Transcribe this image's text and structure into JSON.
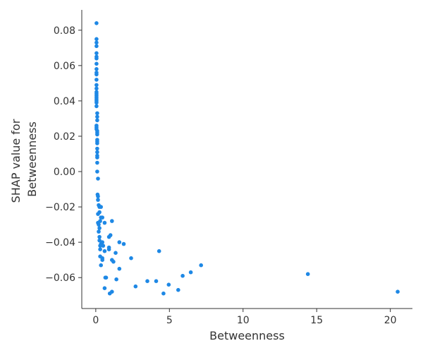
{
  "chart_data": {
    "type": "scatter",
    "xlabel": "Betweenness",
    "ylabel_lines": [
      "SHAP value for",
      "Betweenness"
    ],
    "xlim": [
      -0.95,
      21.5
    ],
    "ylim": [
      -0.0775,
      0.0915
    ],
    "xticks": [
      0,
      5,
      10,
      15,
      20
    ],
    "xtick_labels": [
      "0",
      "5",
      "10",
      "15",
      "20"
    ],
    "yticks": [
      -0.06,
      -0.04,
      -0.02,
      0.0,
      0.02,
      0.04,
      0.06,
      0.08
    ],
    "ytick_labels": [
      "−0.06",
      "−0.04",
      "−0.02",
      "0.00",
      "0.02",
      "0.04",
      "0.06",
      "0.08"
    ],
    "grid": false,
    "point_color": "#1e88e5",
    "points": [
      [
        0.05,
        0.084
      ],
      [
        0.05,
        0.075
      ],
      [
        0.05,
        0.073
      ],
      [
        0.05,
        0.071
      ],
      [
        0.05,
        0.067
      ],
      [
        0.05,
        0.065
      ],
      [
        0.05,
        0.064
      ],
      [
        0.05,
        0.061
      ],
      [
        0.05,
        0.058
      ],
      [
        0.05,
        0.056
      ],
      [
        0.05,
        0.055
      ],
      [
        0.05,
        0.052
      ],
      [
        0.05,
        0.049
      ],
      [
        0.05,
        0.047
      ],
      [
        0.05,
        0.045
      ],
      [
        0.05,
        0.044
      ],
      [
        0.05,
        0.043
      ],
      [
        0.05,
        0.042
      ],
      [
        0.05,
        0.041
      ],
      [
        0.05,
        0.04
      ],
      [
        0.05,
        0.039
      ],
      [
        0.05,
        0.037
      ],
      [
        0.1,
        0.033
      ],
      [
        0.1,
        0.031
      ],
      [
        0.1,
        0.029
      ],
      [
        0.05,
        0.026
      ],
      [
        0.05,
        0.025
      ],
      [
        0.05,
        0.024
      ],
      [
        0.1,
        0.023
      ],
      [
        0.1,
        0.022
      ],
      [
        0.1,
        0.021
      ],
      [
        0.1,
        0.018
      ],
      [
        0.1,
        0.017
      ],
      [
        0.1,
        0.016
      ],
      [
        0.1,
        0.013
      ],
      [
        0.1,
        0.011
      ],
      [
        0.1,
        0.009
      ],
      [
        0.1,
        0.008
      ],
      [
        0.1,
        0.005
      ],
      [
        0.1,
        0.0
      ],
      [
        0.15,
        -0.004
      ],
      [
        0.12,
        -0.013
      ],
      [
        0.15,
        -0.014
      ],
      [
        0.15,
        -0.016
      ],
      [
        0.2,
        -0.019
      ],
      [
        0.25,
        -0.02
      ],
      [
        0.35,
        -0.02
      ],
      [
        0.25,
        -0.023
      ],
      [
        0.15,
        -0.024
      ],
      [
        0.35,
        -0.026
      ],
      [
        0.45,
        -0.026
      ],
      [
        0.3,
        -0.028
      ],
      [
        0.15,
        -0.029
      ],
      [
        0.6,
        -0.029
      ],
      [
        0.2,
        -0.03
      ],
      [
        0.25,
        -0.032
      ],
      [
        0.2,
        -0.034
      ],
      [
        0.25,
        -0.037
      ],
      [
        0.25,
        -0.039
      ],
      [
        0.45,
        -0.04
      ],
      [
        0.35,
        -0.041
      ],
      [
        0.3,
        -0.042
      ],
      [
        0.5,
        -0.042
      ],
      [
        0.3,
        -0.044
      ],
      [
        0.6,
        -0.045
      ],
      [
        0.9,
        -0.043
      ],
      [
        0.9,
        -0.044
      ],
      [
        1.1,
        -0.028
      ],
      [
        0.9,
        -0.037
      ],
      [
        1.0,
        -0.036
      ],
      [
        0.3,
        -0.048
      ],
      [
        0.45,
        -0.049
      ],
      [
        0.45,
        -0.05
      ],
      [
        1.1,
        -0.05
      ],
      [
        1.2,
        -0.051
      ],
      [
        0.35,
        -0.053
      ],
      [
        1.6,
        -0.04
      ],
      [
        1.9,
        -0.041
      ],
      [
        1.35,
        -0.046
      ],
      [
        1.6,
        -0.055
      ],
      [
        2.4,
        -0.049
      ],
      [
        0.65,
        -0.06
      ],
      [
        0.7,
        -0.06
      ],
      [
        1.4,
        -0.061
      ],
      [
        2.7,
        -0.065
      ],
      [
        0.6,
        -0.066
      ],
      [
        1.1,
        -0.068
      ],
      [
        0.95,
        -0.069
      ],
      [
        3.5,
        -0.062
      ],
      [
        4.1,
        -0.062
      ],
      [
        4.3,
        -0.045
      ],
      [
        4.6,
        -0.069
      ],
      [
        4.95,
        -0.064
      ],
      [
        5.6,
        -0.067
      ],
      [
        5.9,
        -0.059
      ],
      [
        6.45,
        -0.057
      ],
      [
        7.15,
        -0.053
      ],
      [
        14.4,
        -0.058
      ],
      [
        20.5,
        -0.068
      ]
    ]
  }
}
